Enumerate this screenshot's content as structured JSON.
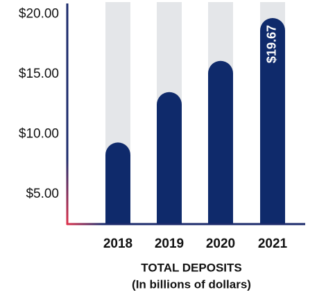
{
  "chart_data": {
    "type": "bar",
    "categories": [
      "2018",
      "2019",
      "2020",
      "2021"
    ],
    "values": [
      9.3,
      13.5,
      16.1,
      19.67
    ],
    "value_labels": [
      null,
      null,
      null,
      "$19.67"
    ],
    "color": "#0f2a6b",
    "track_color": "#e4e6e9",
    "xlabel": [
      "TOTAL DEPOSITS",
      "(In billions of dollars)"
    ],
    "ylim": [
      2.5,
      21
    ],
    "yticks": [
      {
        "value": 5,
        "label": "$5.00"
      },
      {
        "value": 10,
        "label": "$10.00"
      },
      {
        "value": 15,
        "label": "$15.00"
      },
      {
        "value": 20,
        "label": "$20.00"
      }
    ],
    "grid": false
  }
}
